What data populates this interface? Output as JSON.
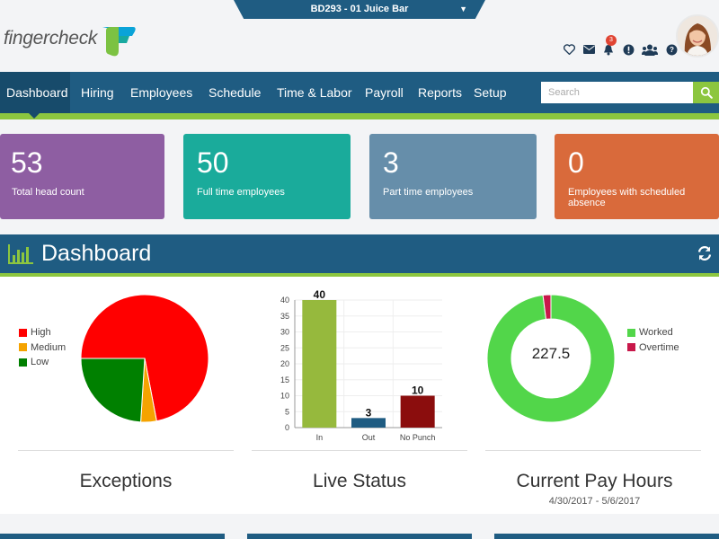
{
  "header": {
    "company": "BD293 - 01 Juice Bar",
    "logo_text": "fingercheck",
    "notification_count": "3",
    "icons": [
      "heart-icon",
      "envelope-icon",
      "bell-icon",
      "info-icon",
      "users-icon",
      "help-icon"
    ]
  },
  "nav": {
    "items": [
      {
        "label": "Dashboard",
        "active": true
      },
      {
        "label": "Hiring"
      },
      {
        "label": "Employees"
      },
      {
        "label": "Schedule"
      },
      {
        "label": "Time & Labor"
      },
      {
        "label": "Payroll"
      },
      {
        "label": "Reports"
      },
      {
        "label": "Setup"
      }
    ],
    "search_placeholder": "Search"
  },
  "cards": [
    {
      "value": "53",
      "label": "Total head count",
      "color": "#8e5ea2"
    },
    {
      "value": "50",
      "label": "Full time employees",
      "color": "#1aab9b"
    },
    {
      "value": "3",
      "label": "Part time employees",
      "color": "#668eaa"
    },
    {
      "value": "0",
      "label": "Employees with scheduled absence",
      "color": "#d96a3b"
    }
  ],
  "dashboard": {
    "title": "Dashboard"
  },
  "widgets": {
    "exceptions": {
      "title": "Exceptions",
      "legend": [
        {
          "label": "High",
          "color": "#ff0000"
        },
        {
          "label": "Medium",
          "color": "#f5a300"
        },
        {
          "label": "Low",
          "color": "#008000"
        }
      ]
    },
    "live_status": {
      "title": "Live Status"
    },
    "pay_hours": {
      "title": "Current Pay Hours",
      "subtitle": "4/30/2017 - 5/6/2017",
      "center_value": "227.5",
      "legend": [
        {
          "label": "Worked",
          "color": "#52d64a"
        },
        {
          "label": "Overtime",
          "color": "#c8184a"
        }
      ]
    }
  },
  "chart_data": [
    {
      "type": "pie",
      "title": "Exceptions",
      "categories": [
        "High",
        "Medium",
        "Low"
      ],
      "values": [
        72,
        4,
        24
      ],
      "colors": [
        "#ff0000",
        "#f5a300",
        "#008000"
      ]
    },
    {
      "type": "bar",
      "title": "Live Status",
      "categories": [
        "In",
        "Out",
        "No Punch"
      ],
      "values": [
        40,
        3,
        10
      ],
      "colors": [
        "#96b93d",
        "#1f5c82",
        "#8b0d0d"
      ],
      "ylim": [
        0,
        40
      ],
      "yticks": [
        0,
        5,
        10,
        15,
        20,
        25,
        30,
        35,
        40
      ]
    },
    {
      "type": "pie",
      "title": "Current Pay Hours",
      "categories": [
        "Worked",
        "Overtime"
      ],
      "values": [
        98,
        2
      ],
      "colors": [
        "#52d64a",
        "#c8184a"
      ]
    }
  ]
}
